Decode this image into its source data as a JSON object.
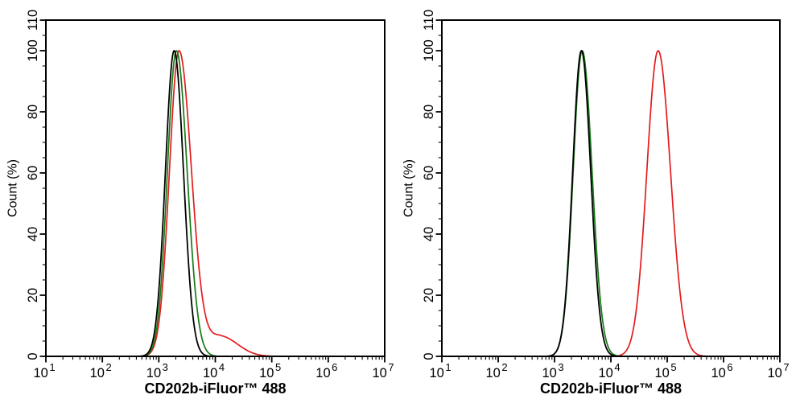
{
  "figure": {
    "background": "#ffffff",
    "panel_count": 2
  },
  "chart_data": [
    {
      "type": "line",
      "panel": "left",
      "title": "",
      "xlabel": "CD202b-iFluor™ 488",
      "ylabel": "Count  (%)",
      "x_scale": "log10",
      "x_range": [
        10,
        10000000
      ],
      "x_major_ticks": [
        10,
        100,
        1000,
        10000,
        100000,
        1000000,
        10000000
      ],
      "x_minor_tick_mantissas": [
        2,
        3,
        4,
        5,
        6,
        7,
        8,
        9
      ],
      "y_range": [
        0,
        110
      ],
      "y_major_ticks": [
        0,
        20,
        40,
        60,
        80,
        100,
        110
      ],
      "y_minor_tick_step": 5,
      "grid": false,
      "legend": null,
      "series": [
        {
          "name": "red-curve",
          "color": "#e41b1d",
          "line_width": 1.7,
          "peaks": [
            {
              "center": 2280,
              "height": 100,
              "sigma_left_dec": 0.17,
              "sigma_right_dec": 0.22
            },
            {
              "center": 12500,
              "height": 6.5,
              "sigma_left_dec": 0.22,
              "sigma_right_dec": 0.3
            }
          ]
        },
        {
          "name": "green-curve",
          "color": "#157a15",
          "line_width": 1.7,
          "peaks": [
            {
              "center": 2050,
              "height": 100,
              "sigma_left_dec": 0.16,
              "sigma_right_dec": 0.19
            }
          ]
        },
        {
          "name": "black-curve",
          "color": "#000000",
          "line_width": 1.8,
          "peaks": [
            {
              "center": 1870,
              "height": 100,
              "sigma_left_dec": 0.155,
              "sigma_right_dec": 0.165
            }
          ]
        }
      ]
    },
    {
      "type": "line",
      "panel": "right",
      "title": "",
      "xlabel": "CD202b-iFluor™ 488",
      "ylabel": "Count  (%)",
      "x_scale": "log10",
      "x_range": [
        10,
        10000000
      ],
      "x_major_ticks": [
        10,
        100,
        1000,
        10000,
        100000,
        1000000,
        10000000
      ],
      "x_minor_tick_mantissas": [
        2,
        3,
        4,
        5,
        6,
        7,
        8,
        9
      ],
      "y_range": [
        0,
        110
      ],
      "y_major_ticks": [
        0,
        20,
        40,
        60,
        80,
        100,
        110
      ],
      "y_minor_tick_step": 5,
      "grid": false,
      "legend": null,
      "series": [
        {
          "name": "red-curve",
          "color": "#e41b1d",
          "line_width": 1.7,
          "peaks": [
            {
              "center": 69000,
              "height": 100,
              "sigma_left_dec": 0.2,
              "sigma_right_dec": 0.22
            }
          ]
        },
        {
          "name": "green-curve",
          "color": "#157a15",
          "line_width": 1.7,
          "peaks": [
            {
              "center": 3100,
              "height": 100,
              "sigma_left_dec": 0.16,
              "sigma_right_dec": 0.175
            }
          ]
        },
        {
          "name": "black-curve",
          "color": "#000000",
          "line_width": 1.8,
          "peaks": [
            {
              "center": 3000,
              "height": 100,
              "sigma_left_dec": 0.155,
              "sigma_right_dec": 0.165
            }
          ]
        }
      ]
    }
  ]
}
